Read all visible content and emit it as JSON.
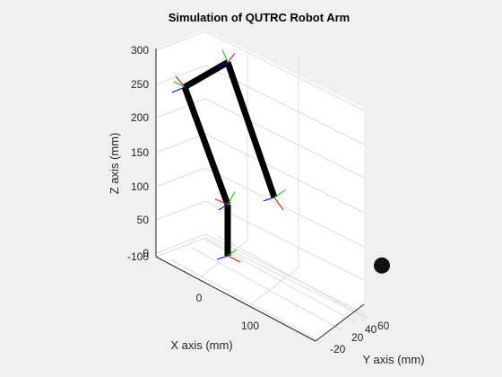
{
  "chart_data": {
    "type": "line",
    "subtype": "3d-robot-arm",
    "title": "Simulation of QUTRC Robot Arm",
    "xlabel": "X axis (mm)",
    "ylabel": "Y axis (mm)",
    "zlabel": "Z axis (mm)",
    "x_ticks": [
      "0",
      "100"
    ],
    "y_ticks": [
      "-20",
      "20",
      "40",
      "60"
    ],
    "z_ticks": [
      "-100",
      "0",
      "50",
      "100",
      "150",
      "200",
      "250",
      "300"
    ],
    "xlim": [
      -80,
      140
    ],
    "ylim": [
      -25,
      65
    ],
    "zlim": [
      -100,
      300
    ],
    "grid": true,
    "colors": {
      "background": "#f0f0f0",
      "axes": "#ffffff",
      "link": "#000000",
      "frame_x": "#ff0000",
      "frame_y": "#00cc00",
      "frame_z": "#0000ff",
      "target": "#111111"
    },
    "series": [
      {
        "values": [
          {
            "x": 0,
            "y": 0,
            "z": 0
          },
          {
            "x": 0,
            "y": 0,
            "z": 65
          },
          {
            "x": -60,
            "y": 0,
            "z": 185
          },
          {
            "x": 0,
            "y": 0,
            "z": 245
          },
          {
            "x": 65,
            "y": 0,
            "z": 105
          }
        ]
      }
    ],
    "target_marker": {
      "x": 140,
      "y": 60,
      "z": 0
    }
  }
}
